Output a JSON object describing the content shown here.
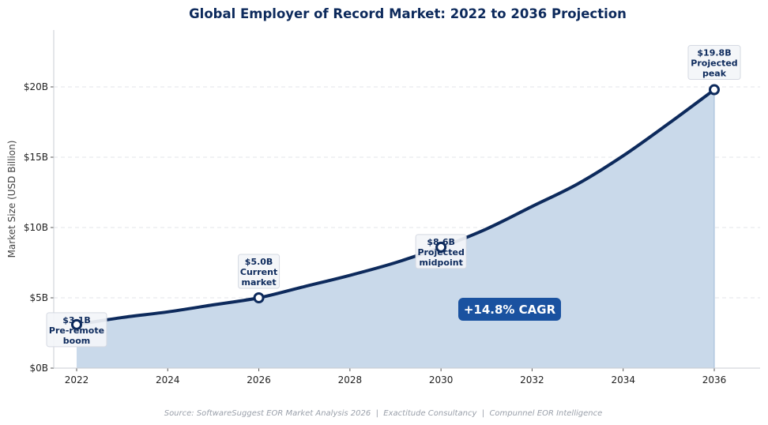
{
  "chart_data": {
    "type": "area",
    "title": "Global Employer of Record Market: 2022 to 2036 Projection",
    "xlabel": "",
    "ylabel": "Market Size (USD Billion)",
    "xlim": [
      2021.5,
      2037
    ],
    "ylim": [
      0,
      24
    ],
    "x_ticks": [
      2022,
      2024,
      2026,
      2028,
      2030,
      2032,
      2034,
      2036
    ],
    "y_ticks": [
      0,
      5,
      10,
      15,
      20
    ],
    "y_tick_labels": [
      "$0B",
      "$5B",
      "$10B",
      "$15B",
      "$20B"
    ],
    "grid": "horizontal dashed",
    "x": [
      2022,
      2023,
      2024,
      2025,
      2026,
      2027,
      2028,
      2029,
      2030,
      2031,
      2032,
      2033,
      2034,
      2035,
      2036
    ],
    "values": [
      3.1,
      3.6,
      4.0,
      4.5,
      5.0,
      5.8,
      6.6,
      7.5,
      8.6,
      9.9,
      11.5,
      13.1,
      15.1,
      17.4,
      19.8
    ],
    "line_color": "#0d2a5c",
    "fill_color": "#c9d9ea",
    "annotations": [
      {
        "x": 2022,
        "y": 3.1,
        "lines": [
          "$3.1B",
          "Pre-remote",
          "boom"
        ]
      },
      {
        "x": 2026,
        "y": 5.0,
        "lines": [
          "$5.0B",
          "Current",
          "market"
        ]
      },
      {
        "x": 2030,
        "y": 8.6,
        "lines": [
          "$8.6B",
          "Projected",
          "midpoint"
        ]
      },
      {
        "x": 2036,
        "y": 19.8,
        "lines": [
          "$19.8B",
          "Projected",
          "peak"
        ]
      }
    ],
    "badge": {
      "text": "+14.8% CAGR",
      "color": "#1a52a0"
    },
    "source": "Source: SoftwareSuggest EOR Market Analysis 2026  |  Exactitude Consultancy  |  Compunnel EOR Intelligence"
  }
}
